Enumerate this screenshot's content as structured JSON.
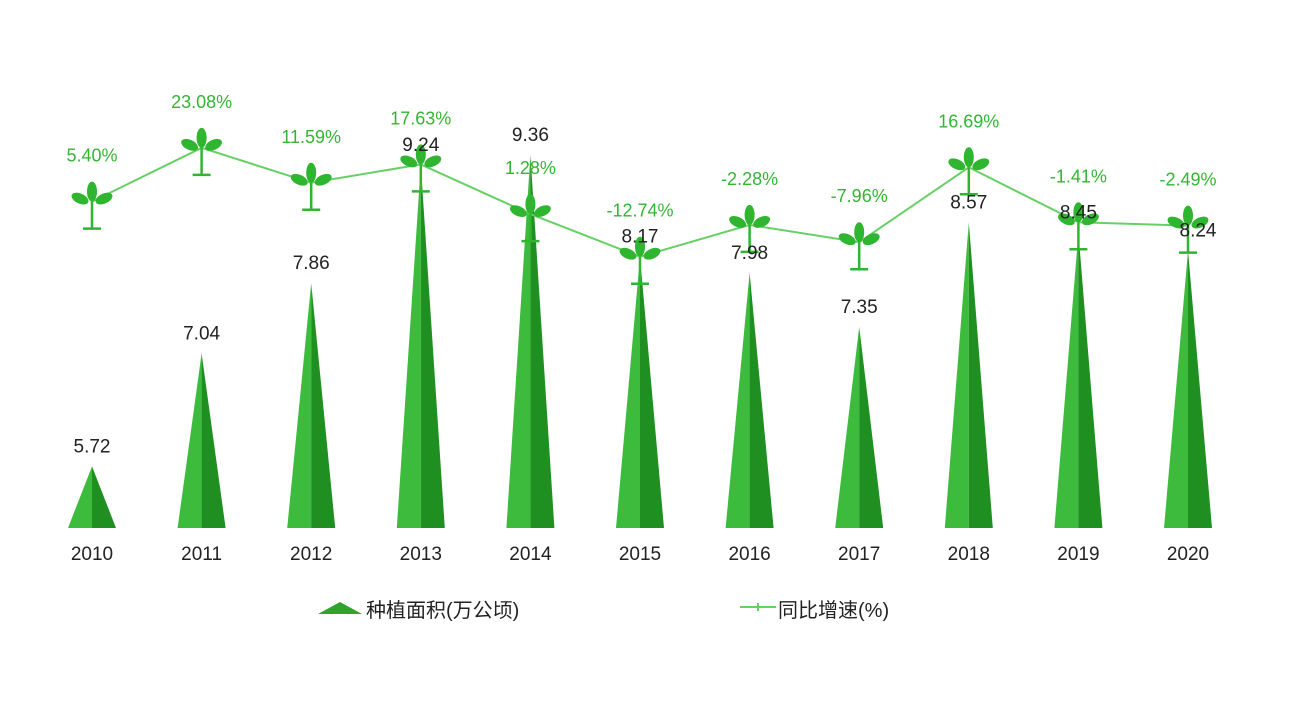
{
  "chart_data": {
    "type": "bar+line",
    "categories": [
      "2010",
      "2011",
      "2012",
      "2013",
      "2014",
      "2015",
      "2016",
      "2017",
      "2018",
      "2019",
      "2020"
    ],
    "series": [
      {
        "name": "种植面积(万公顷)",
        "type": "triangle-bar",
        "values": [
          5.72,
          7.04,
          7.86,
          9.24,
          9.36,
          8.17,
          7.98,
          7.35,
          8.57,
          8.45,
          8.24
        ],
        "labels": [
          "5.72",
          "7.04",
          "7.86",
          "9.24",
          "9.36",
          "8.17",
          "7.98",
          "7.35",
          "8.57",
          "8.45",
          "8.24"
        ]
      },
      {
        "name": "同比增速(%)",
        "type": "line",
        "values": [
          5.4,
          23.08,
          11.59,
          17.63,
          1.28,
          -12.74,
          -2.28,
          -7.96,
          16.69,
          -1.41,
          -2.49
        ],
        "labels": [
          "5.40%",
          "23.08%",
          "11.59%",
          "17.63%",
          "1.28%",
          "-12.74%",
          "-2.28%",
          "-7.96%",
          "16.69%",
          "-1.41%",
          "-2.49%"
        ]
      }
    ],
    "bar_axis_min": 5,
    "grid": false,
    "legend_position": "bottom",
    "colors": {
      "bar_light": "#3dbb3d",
      "bar_dark": "#1f8f22",
      "line": "#66d066",
      "pct_label": "#33b533",
      "plant": "#2fb52f"
    }
  }
}
